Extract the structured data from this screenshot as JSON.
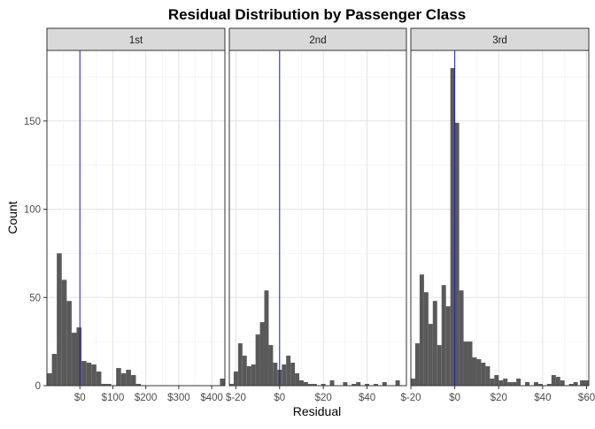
{
  "chart_data": {
    "type": "bar",
    "title": "Residual Distribution by Passenger Class",
    "xlabel": "Residual",
    "ylabel": "Count",
    "grid": true,
    "y_ticks": [
      0,
      50,
      100,
      150
    ],
    "ylim": [
      0,
      190
    ],
    "reference_line": {
      "x": 0,
      "color": "#1f1fb4"
    },
    "bar_color": "#595959",
    "panels": [
      {
        "name": "1st",
        "xlim": [
          -100,
          440
        ],
        "x_ticks": [
          {
            "v": 0,
            "label": "$0"
          },
          {
            "v": 100,
            "label": "$100"
          },
          {
            "v": 200,
            "label": "$200"
          },
          {
            "v": 300,
            "label": "$300"
          },
          {
            "v": 400,
            "label": "$400"
          }
        ],
        "bins": [
          {
            "x0": -100,
            "x1": -85,
            "count": 7
          },
          {
            "x0": -85,
            "x1": -70,
            "count": 18
          },
          {
            "x0": -70,
            "x1": -55,
            "count": 75
          },
          {
            "x0": -55,
            "x1": -40,
            "count": 60
          },
          {
            "x0": -40,
            "x1": -25,
            "count": 48
          },
          {
            "x0": -25,
            "x1": -10,
            "count": 30
          },
          {
            "x0": -10,
            "x1": 5,
            "count": 33
          },
          {
            "x0": 5,
            "x1": 20,
            "count": 14
          },
          {
            "x0": 20,
            "x1": 35,
            "count": 13
          },
          {
            "x0": 35,
            "x1": 50,
            "count": 12
          },
          {
            "x0": 50,
            "x1": 65,
            "count": 8
          },
          {
            "x0": 65,
            "x1": 80,
            "count": 1
          },
          {
            "x0": 80,
            "x1": 95,
            "count": 1
          },
          {
            "x0": 95,
            "x1": 110,
            "count": 0
          },
          {
            "x0": 110,
            "x1": 125,
            "count": 10
          },
          {
            "x0": 125,
            "x1": 140,
            "count": 7
          },
          {
            "x0": 140,
            "x1": 155,
            "count": 9
          },
          {
            "x0": 155,
            "x1": 170,
            "count": 6
          },
          {
            "x0": 170,
            "x1": 185,
            "count": 1
          },
          {
            "x0": 185,
            "x1": 200,
            "count": 0
          },
          {
            "x0": 425,
            "x1": 440,
            "count": 4
          }
        ]
      },
      {
        "name": "2nd",
        "xlim": [
          -23,
          58
        ],
        "x_ticks": [
          {
            "v": -20,
            "label": "$-20"
          },
          {
            "v": 0,
            "label": "$0"
          },
          {
            "v": 20,
            "label": "$20"
          },
          {
            "v": 40,
            "label": "$40"
          }
        ],
        "bins": [
          {
            "x0": -23,
            "x1": -21,
            "count": 1
          },
          {
            "x0": -21,
            "x1": -19,
            "count": 8
          },
          {
            "x0": -19,
            "x1": -17,
            "count": 24
          },
          {
            "x0": -17,
            "x1": -15,
            "count": 17
          },
          {
            "x0": -15,
            "x1": -13,
            "count": 11
          },
          {
            "x0": -13,
            "x1": -11,
            "count": 12
          },
          {
            "x0": -11,
            "x1": -9,
            "count": 29
          },
          {
            "x0": -9,
            "x1": -7,
            "count": 36
          },
          {
            "x0": -7,
            "x1": -5,
            "count": 54
          },
          {
            "x0": -5,
            "x1": -3,
            "count": 23
          },
          {
            "x0": -3,
            "x1": -1,
            "count": 13
          },
          {
            "x0": -1,
            "x1": 1,
            "count": 9
          },
          {
            "x0": 1,
            "x1": 3,
            "count": 12
          },
          {
            "x0": 3,
            "x1": 5,
            "count": 17
          },
          {
            "x0": 5,
            "x1": 7,
            "count": 13
          },
          {
            "x0": 7,
            "x1": 9,
            "count": 7
          },
          {
            "x0": 9,
            "x1": 11,
            "count": 3
          },
          {
            "x0": 11,
            "x1": 13,
            "count": 2
          },
          {
            "x0": 13,
            "x1": 15,
            "count": 1
          },
          {
            "x0": 15,
            "x1": 17,
            "count": 1
          },
          {
            "x0": 19,
            "x1": 21,
            "count": 1
          },
          {
            "x0": 23,
            "x1": 25,
            "count": 3
          },
          {
            "x0": 29,
            "x1": 31,
            "count": 2
          },
          {
            "x0": 33,
            "x1": 35,
            "count": 1
          },
          {
            "x0": 35,
            "x1": 37,
            "count": 2
          },
          {
            "x0": 39,
            "x1": 41,
            "count": 1
          },
          {
            "x0": 43,
            "x1": 45,
            "count": 1
          },
          {
            "x0": 47,
            "x1": 49,
            "count": 2
          },
          {
            "x0": 53,
            "x1": 55,
            "count": 3
          }
        ]
      },
      {
        "name": "3rd",
        "xlim": [
          -20,
          61
        ],
        "x_ticks": [
          {
            "v": -20,
            "label": "$-20"
          },
          {
            "v": 0,
            "label": "$0"
          },
          {
            "v": 20,
            "label": "$20"
          },
          {
            "v": 40,
            "label": "$40"
          },
          {
            "v": 60,
            "label": "$60"
          }
        ],
        "bins": [
          {
            "x0": -20,
            "x1": -18,
            "count": 4
          },
          {
            "x0": -18,
            "x1": -16,
            "count": 24
          },
          {
            "x0": -16,
            "x1": -14,
            "count": 63
          },
          {
            "x0": -14,
            "x1": -12,
            "count": 53
          },
          {
            "x0": -12,
            "x1": -10,
            "count": 35
          },
          {
            "x0": -10,
            "x1": -8,
            "count": 48
          },
          {
            "x0": -8,
            "x1": -6,
            "count": 23
          },
          {
            "x0": -6,
            "x1": -4,
            "count": 57
          },
          {
            "x0": -4,
            "x1": -2,
            "count": 45
          },
          {
            "x0": -2,
            "x1": 0,
            "count": 180
          },
          {
            "x0": 0,
            "x1": 2,
            "count": 149
          },
          {
            "x0": 2,
            "x1": 4,
            "count": 54
          },
          {
            "x0": 4,
            "x1": 6,
            "count": 25
          },
          {
            "x0": 6,
            "x1": 8,
            "count": 25
          },
          {
            "x0": 8,
            "x1": 10,
            "count": 16
          },
          {
            "x0": 10,
            "x1": 12,
            "count": 15
          },
          {
            "x0": 12,
            "x1": 14,
            "count": 13
          },
          {
            "x0": 14,
            "x1": 16,
            "count": 11
          },
          {
            "x0": 16,
            "x1": 18,
            "count": 4
          },
          {
            "x0": 18,
            "x1": 20,
            "count": 6
          },
          {
            "x0": 20,
            "x1": 22,
            "count": 3
          },
          {
            "x0": 22,
            "x1": 24,
            "count": 4
          },
          {
            "x0": 24,
            "x1": 26,
            "count": 2
          },
          {
            "x0": 26,
            "x1": 28,
            "count": 2
          },
          {
            "x0": 28,
            "x1": 30,
            "count": 4
          },
          {
            "x0": 32,
            "x1": 34,
            "count": 2
          },
          {
            "x0": 36,
            "x1": 38,
            "count": 2
          },
          {
            "x0": 38,
            "x1": 40,
            "count": 1
          },
          {
            "x0": 42,
            "x1": 44,
            "count": 1
          },
          {
            "x0": 44,
            "x1": 46,
            "count": 6
          },
          {
            "x0": 46,
            "x1": 48,
            "count": 5
          },
          {
            "x0": 48,
            "x1": 50,
            "count": 3
          },
          {
            "x0": 52,
            "x1": 54,
            "count": 1
          },
          {
            "x0": 54,
            "x1": 56,
            "count": 2
          },
          {
            "x0": 57,
            "x1": 61,
            "count": 3
          }
        ]
      }
    ]
  }
}
